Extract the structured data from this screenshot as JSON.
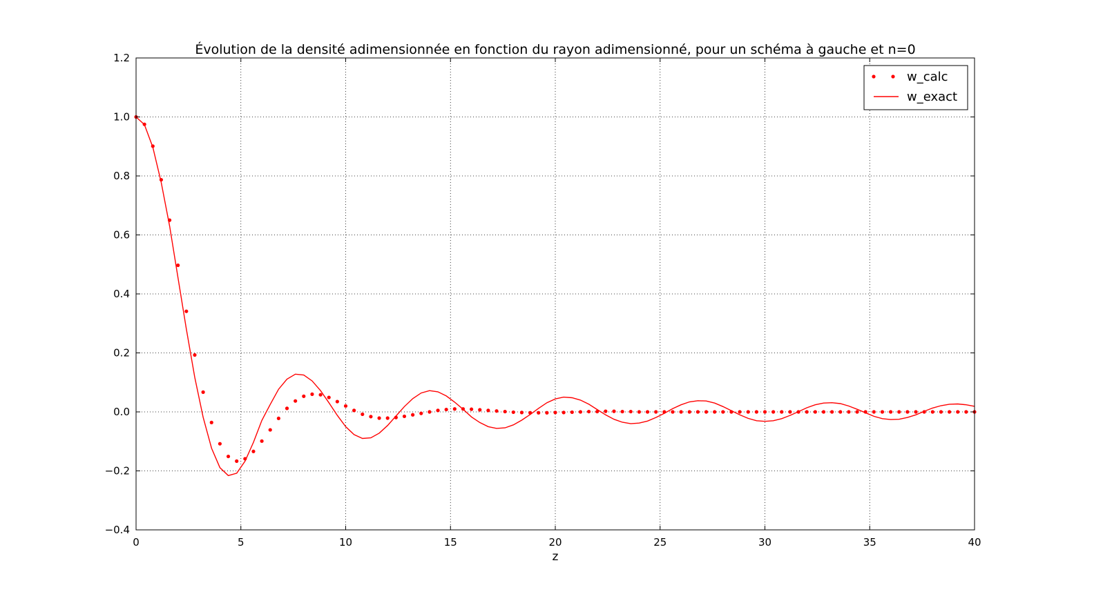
{
  "chart_data": {
    "type": "line",
    "title": "Évolution de la densité adimensionnée en fonction du rayon adimensionné, pour un schéma à gauche et n=0",
    "xlabel": "z",
    "ylabel": "",
    "xlim": [
      0,
      40
    ],
    "ylim": [
      -0.4,
      1.2
    ],
    "xticks": [
      0,
      5,
      10,
      15,
      20,
      25,
      30,
      35,
      40
    ],
    "xtick_labels": [
      "0",
      "5",
      "10",
      "15",
      "20",
      "25",
      "30",
      "35",
      "40"
    ],
    "yticks": [
      -0.4,
      -0.2,
      0.0,
      0.2,
      0.4,
      0.6,
      0.8,
      1.0,
      1.2
    ],
    "ytick_labels": [
      "−0.4",
      "−0.2",
      "0.0",
      "0.2",
      "0.4",
      "0.6",
      "0.8",
      "1.0",
      "1.2"
    ],
    "grid": true,
    "legend_position": "top-right",
    "series": [
      {
        "name": "w_calc",
        "style": "dots",
        "color": "#ff0000",
        "x": [
          0,
          0.4,
          0.8,
          1.2,
          1.6,
          2.0,
          2.4,
          2.8,
          3.2,
          3.6,
          4.0,
          4.4,
          4.8,
          5.2,
          5.6,
          6.0,
          6.4,
          6.8,
          7.2,
          7.6,
          8.0,
          8.4,
          8.8,
          9.2,
          9.6,
          10.0,
          10.4,
          10.8,
          11.2,
          11.6,
          12.0,
          12.4,
          12.8,
          13.2,
          13.6,
          14.0,
          14.4,
          14.8,
          15.2,
          15.6,
          16.0,
          16.4,
          16.8,
          17.2,
          17.6,
          18.0,
          18.4,
          18.8,
          19.2,
          19.6,
          20.0,
          20.4,
          20.8,
          21.2,
          21.6,
          22.0,
          22.4,
          22.8,
          23.2,
          23.6,
          24.0,
          24.4,
          24.8,
          25.2,
          25.6,
          26.0,
          26.4,
          26.8,
          27.2,
          27.6,
          28.0,
          28.4,
          28.8,
          29.2,
          29.6,
          30.0,
          30.4,
          30.8,
          31.2,
          31.6,
          32.0,
          32.4,
          32.8,
          33.2,
          33.6,
          34.0,
          34.4,
          34.8,
          35.2,
          35.6,
          36.0,
          36.4,
          36.8,
          37.2,
          37.6,
          38.0,
          38.4,
          38.8,
          39.2,
          39.6,
          40.0
        ],
        "y": [
          1.0,
          0.975,
          0.901,
          0.787,
          0.65,
          0.497,
          0.341,
          0.193,
          0.067,
          -0.036,
          -0.108,
          -0.151,
          -0.167,
          -0.159,
          -0.134,
          -0.099,
          -0.061,
          -0.022,
          0.012,
          0.037,
          0.053,
          0.06,
          0.058,
          0.049,
          0.035,
          0.02,
          0.005,
          -0.008,
          -0.016,
          -0.021,
          -0.021,
          -0.019,
          -0.015,
          -0.01,
          -0.005,
          0.0,
          0.005,
          0.008,
          0.01,
          0.01,
          0.009,
          0.007,
          0.005,
          0.003,
          0.001,
          -0.001,
          -0.002,
          -0.003,
          -0.003,
          -0.003,
          -0.002,
          -0.002,
          -0.001,
          0.0,
          0.001,
          0.001,
          0.002,
          0.002,
          0.001,
          0.001,
          0.0,
          0.0,
          0.0,
          0.0,
          0.0,
          0.0,
          0.0,
          0.0,
          0.0,
          0.0,
          0.0,
          0.0,
          0.0,
          0.0,
          0.0,
          0.0,
          0.0,
          0.0,
          0.0,
          0.0,
          0.0,
          0.0,
          0.0,
          0.0,
          0.0,
          0.0,
          0.0,
          0.0,
          0.0,
          0.0,
          0.0,
          0.0,
          0.0,
          0.0,
          0.0,
          0.0,
          0.0,
          0.0,
          0.0,
          0.0,
          0.0
        ]
      },
      {
        "name": "w_exact",
        "style": "line",
        "color": "#ff0000",
        "x": [
          0,
          0.4,
          0.8,
          1.2,
          1.6,
          2.0,
          2.4,
          2.8,
          3.2,
          3.6,
          4.0,
          4.4,
          4.8,
          5.2,
          5.6,
          6.0,
          6.4,
          6.8,
          7.2,
          7.6,
          8.0,
          8.4,
          8.8,
          9.2,
          9.6,
          10.0,
          10.4,
          10.8,
          11.2,
          11.6,
          12.0,
          12.4,
          12.8,
          13.2,
          13.6,
          14.0,
          14.4,
          14.8,
          15.2,
          15.6,
          16.0,
          16.4,
          16.8,
          17.2,
          17.6,
          18.0,
          18.4,
          18.8,
          19.2,
          19.6,
          20.0,
          20.4,
          20.8,
          21.2,
          21.6,
          22.0,
          22.4,
          22.8,
          23.2,
          23.6,
          24.0,
          24.4,
          24.8,
          25.2,
          25.6,
          26.0,
          26.4,
          26.8,
          27.2,
          27.6,
          28.0,
          28.4,
          28.8,
          29.2,
          29.6,
          30.0,
          30.4,
          30.8,
          31.2,
          31.6,
          32.0,
          32.4,
          32.8,
          33.2,
          33.6,
          34.0,
          34.4,
          34.8,
          35.2,
          35.6,
          36.0,
          36.4,
          36.8,
          37.2,
          37.6,
          38.0,
          38.4,
          38.8,
          39.2,
          39.6,
          40.0
        ],
        "y": [
          1.0,
          0.974,
          0.897,
          0.778,
          0.63,
          0.455,
          0.281,
          0.117,
          -0.018,
          -0.123,
          -0.189,
          -0.216,
          -0.208,
          -0.167,
          -0.103,
          -0.029,
          0.025,
          0.077,
          0.111,
          0.128,
          0.125,
          0.105,
          0.072,
          0.031,
          -0.012,
          -0.05,
          -0.077,
          -0.09,
          -0.088,
          -0.072,
          -0.046,
          -0.014,
          0.018,
          0.045,
          0.064,
          0.072,
          0.068,
          0.054,
          0.033,
          0.009,
          -0.017,
          -0.036,
          -0.05,
          -0.056,
          -0.054,
          -0.044,
          -0.028,
          -0.009,
          0.012,
          0.031,
          0.044,
          0.05,
          0.048,
          0.04,
          0.026,
          0.008,
          -0.01,
          -0.025,
          -0.035,
          -0.04,
          -0.038,
          -0.031,
          -0.019,
          -0.005,
          0.011,
          0.024,
          0.034,
          0.038,
          0.037,
          0.03,
          0.018,
          0.004,
          -0.01,
          -0.022,
          -0.03,
          -0.032,
          -0.03,
          -0.023,
          -0.012,
          0.001,
          0.014,
          0.024,
          0.03,
          0.031,
          0.028,
          0.02,
          0.009,
          -0.003,
          -0.015,
          -0.023,
          -0.026,
          -0.025,
          -0.019,
          -0.01,
          0.002,
          0.013,
          0.021,
          0.026,
          0.027,
          0.024,
          0.019
        ]
      }
    ]
  }
}
